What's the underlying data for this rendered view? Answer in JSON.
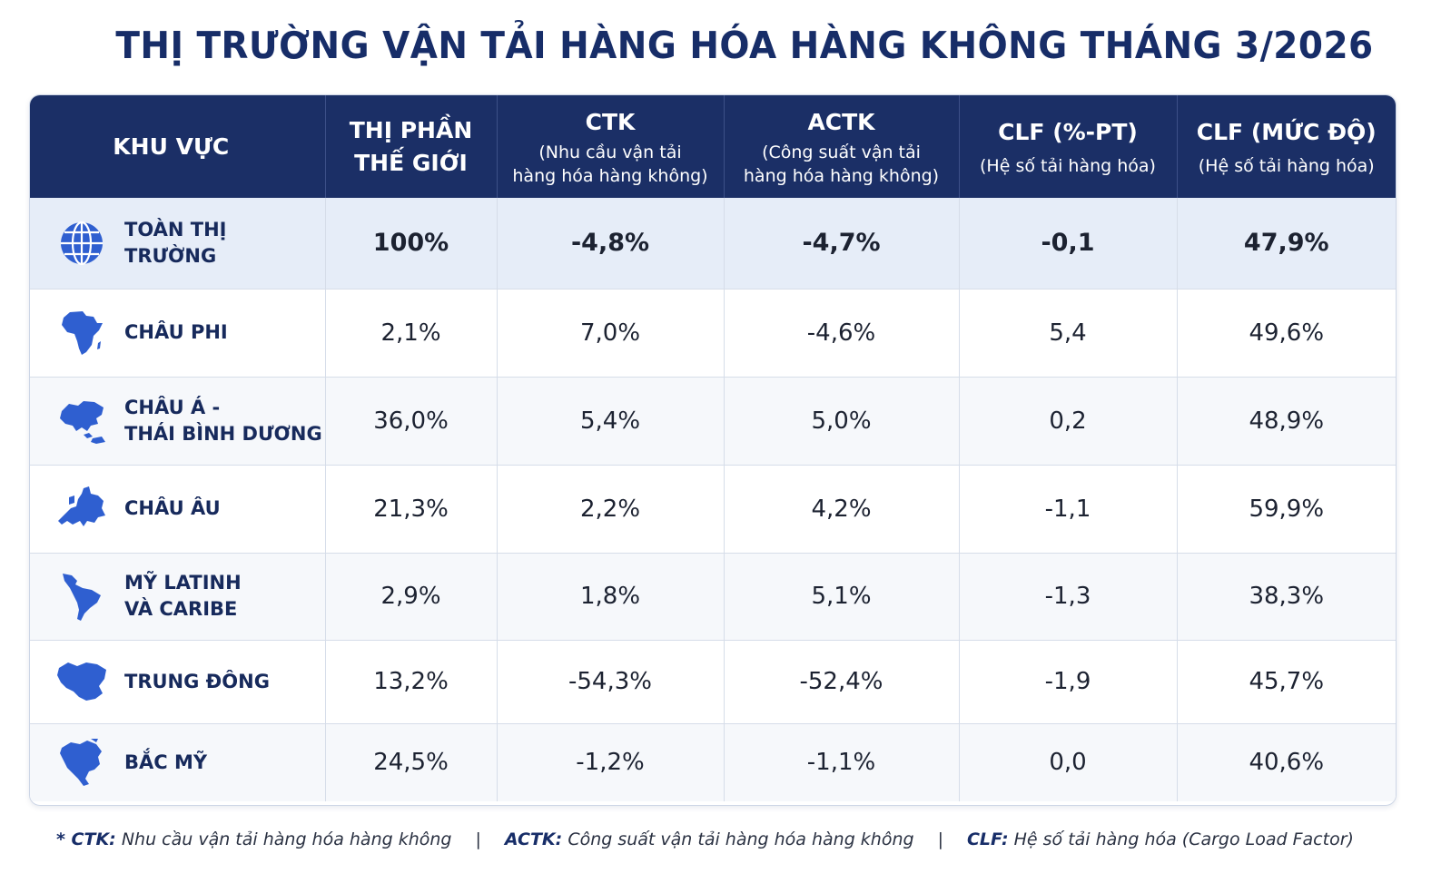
{
  "title": "THỊ TRƯỜNG VẬN TẢI HÀNG HÓA HÀNG KHÔNG THÁNG 3/2026",
  "header": {
    "region": "KHU VỰC",
    "share": "THỊ PHẦN\nTHẾ GIỚI",
    "ctk": "CTK",
    "ctk_sub": "(Nhu cầu vận tải\nhàng hóa hàng không)",
    "actk": "ACTK",
    "actk_sub": "(Công suất vận tải\nhàng hóa hàng không)",
    "clf_pt": "CLF (%-PT)",
    "clf_pt_sub": "(Hệ số tải hàng hóa)",
    "clf_level": "CLF (MỨC ĐỘ)",
    "clf_level_sub": "(Hệ số tải hàng hóa)"
  },
  "rows": [
    {
      "icon": "globe-icon",
      "region": "TOÀN THỊ TRƯỜNG",
      "share": "100%",
      "ctk": "-4,8%",
      "actk": "-4,7%",
      "clf_pt": "-0,1",
      "clf_level": "47,9%"
    },
    {
      "icon": "africa-map-icon",
      "region": "CHÂU PHI",
      "share": "2,1%",
      "ctk": "7,0%",
      "actk": "-4,6%",
      "clf_pt": "5,4",
      "clf_level": "49,6%"
    },
    {
      "icon": "asia-pacific-map-icon",
      "region": "CHÂU Á -\nTHÁI BÌNH DƯƠNG",
      "share": "36,0%",
      "ctk": "5,4%",
      "actk": "5,0%",
      "clf_pt": "0,2",
      "clf_level": "48,9%"
    },
    {
      "icon": "europe-map-icon",
      "region": "CHÂU ÂU",
      "share": "21,3%",
      "ctk": "2,2%",
      "actk": "4,2%",
      "clf_pt": "-1,1",
      "clf_level": "59,9%"
    },
    {
      "icon": "latin-america-map-icon",
      "region": "MỸ LATINH\nVÀ CARIBE",
      "share": "2,9%",
      "ctk": "1,8%",
      "actk": "5,1%",
      "clf_pt": "-1,3",
      "clf_level": "38,3%"
    },
    {
      "icon": "middle-east-map-icon",
      "region": "TRUNG ĐÔNG",
      "share": "13,2%",
      "ctk": "-54,3%",
      "actk": "-52,4%",
      "clf_pt": "-1,9",
      "clf_level": "45,7%"
    },
    {
      "icon": "north-america-map-icon",
      "region": "BẮC MỸ",
      "share": "24,5%",
      "ctk": "-1,2%",
      "actk": "-1,1%",
      "clf_pt": "0,0",
      "clf_level": "40,6%"
    }
  ],
  "footnote": {
    "ctk_label": "* CTK:",
    "ctk_text": "Nhu cầu vận tải hàng hóa hàng không",
    "sep": "|",
    "actk_label": "ACTK:",
    "actk_text": "Công suất vận tải hàng hóa hàng không",
    "clf_label": "CLF:",
    "clf_text": "Hệ số tải hàng hóa (Cargo Load Factor)"
  },
  "colors": {
    "header_bg": "#1b2f66",
    "title": "#172d68",
    "icon": "#2f5fd0",
    "total_row_bg": "#e6edf8"
  }
}
